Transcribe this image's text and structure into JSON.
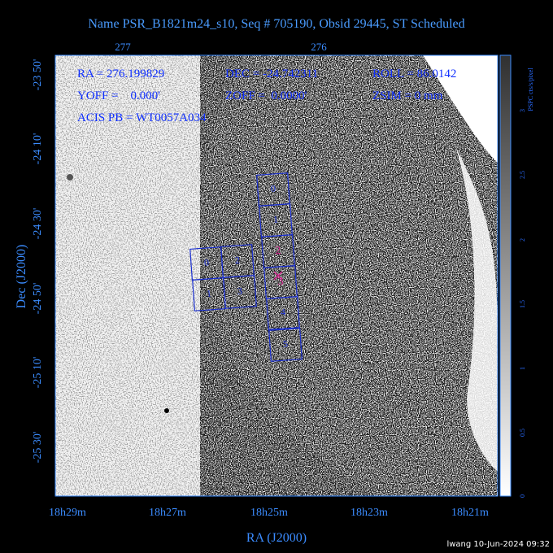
{
  "title": "Name PSR_B1821m24_s10, Seq # 705190, Obsid 29445, ST Scheduled",
  "top_ticks": [
    "277",
    "276"
  ],
  "left_ticks": [
    "-23 50'",
    "-24 10'",
    "-24 30'",
    "-24 50'",
    "-25 10'",
    "-25 30'"
  ],
  "bottom_ticks": [
    "18h29m",
    "18h27m",
    "18h25m",
    "18h23m",
    "18h21m"
  ],
  "x_label": "RA (J2000)",
  "y_label": "Dec (J2000)",
  "info": [
    "RA = 276.199829",
    "DEC = -24.742311",
    "ROLL = 86.0142",
    "YOFF =    0.000'",
    "ZOFF =  0.0000'",
    "ZSIM = 0 mm",
    "ACIS PB = WT0057A034"
  ],
  "colorbar": {
    "label": "PSPC cts/s/pixel",
    "ticks": [
      "0",
      "0.5",
      "1",
      "1.5",
      "2",
      "2.5",
      "3"
    ]
  },
  "acis_s": [
    "0",
    "1",
    "2",
    "3",
    "4",
    "5"
  ],
  "acis_i": [
    "0",
    "2",
    "1",
    "3"
  ],
  "footer": "lwang 10-Jun-2024 09:32"
}
